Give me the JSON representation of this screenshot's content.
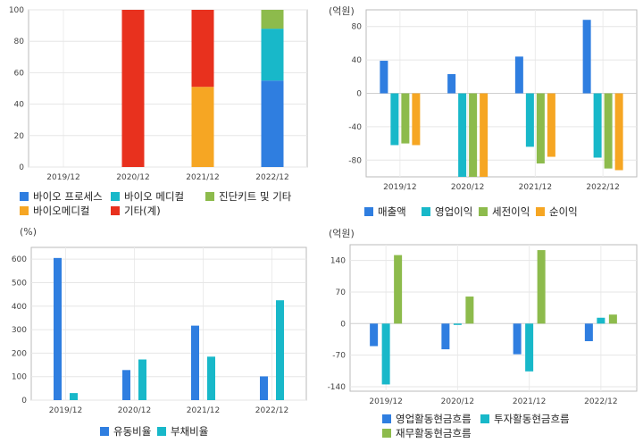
{
  "chart_data": [
    {
      "type": "bar",
      "stacked": true,
      "unit": "",
      "categories": [
        "2019/12",
        "2020/12",
        "2021/12",
        "2022/12"
      ],
      "ylim": [
        0,
        100
      ],
      "yticks": [
        0,
        20,
        40,
        60,
        80,
        100
      ],
      "series": [
        {
          "name": "바이오 프로세스",
          "color": "#2f7ee0",
          "values": [
            0,
            0,
            0,
            55
          ]
        },
        {
          "name": "바이오 메디컬",
          "color": "#18b8c9",
          "values": [
            0,
            0,
            0,
            33
          ]
        },
        {
          "name": "진단키트 및 기타",
          "color": "#8dbb4c",
          "values": [
            0,
            0,
            0,
            12
          ]
        },
        {
          "name": "바이오메디컬",
          "color": "#f6a623",
          "values": [
            0,
            0,
            51,
            0
          ]
        },
        {
          "name": "기타(계)",
          "color": "#e8311e",
          "values": [
            0,
            100,
            49,
            0
          ]
        }
      ]
    },
    {
      "type": "bar",
      "unit": "(억원)",
      "categories": [
        "2019/12",
        "2020/12",
        "2021/12",
        "2022/12"
      ],
      "ylim": [
        -100,
        100
      ],
      "yticks": [
        -80,
        -40,
        0,
        40,
        80
      ],
      "series": [
        {
          "name": "매출액",
          "color": "#2f7ee0",
          "values": [
            39,
            23,
            44,
            88
          ]
        },
        {
          "name": "영업이익",
          "color": "#18b8c9",
          "values": [
            -62,
            -103,
            -64,
            -77
          ]
        },
        {
          "name": "세전이익",
          "color": "#8dbb4c",
          "values": [
            -60,
            -103,
            -84,
            -90
          ]
        },
        {
          "name": "순이익",
          "color": "#f6a623",
          "values": [
            -62,
            -103,
            -76,
            -92
          ]
        }
      ]
    },
    {
      "type": "bar",
      "unit": "(%)",
      "categories": [
        "2019/12",
        "2020/12",
        "2021/12",
        "2022/12"
      ],
      "ylim": [
        0,
        650
      ],
      "yticks": [
        0,
        100,
        200,
        300,
        400,
        500,
        600
      ],
      "series": [
        {
          "name": "유동비율",
          "color": "#2f7ee0",
          "values": [
            605,
            128,
            317,
            101
          ]
        },
        {
          "name": "부채비율",
          "color": "#18b8c9",
          "values": [
            30,
            173,
            185,
            425
          ]
        }
      ]
    },
    {
      "type": "bar",
      "unit": "(억원)",
      "categories": [
        "2019/12",
        "2020/12",
        "2021/12",
        "2022/12"
      ],
      "ylim": [
        -150,
        175
      ],
      "yticks": [
        -140,
        -70,
        0,
        70,
        140
      ],
      "series": [
        {
          "name": "영업활동현금흐름",
          "color": "#2f7ee0",
          "values": [
            -50,
            -57,
            -68,
            -39
          ]
        },
        {
          "name": "투자활동현금흐름",
          "color": "#18b8c9",
          "values": [
            -135,
            -3,
            -106,
            13
          ]
        },
        {
          "name": "재무활동현금흐름",
          "color": "#8dbb4c",
          "values": [
            152,
            60,
            163,
            20
          ]
        }
      ]
    }
  ]
}
